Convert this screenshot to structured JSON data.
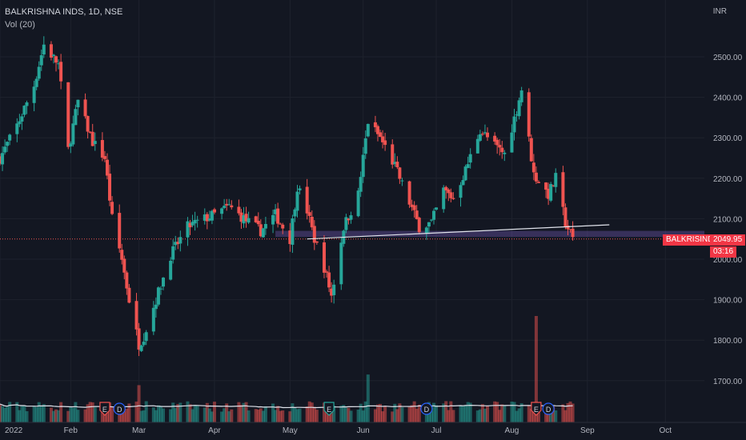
{
  "header": {
    "symbol_line": "BALKRISHNA INDS, 1D, NSE",
    "indicator": "Vol (20)"
  },
  "currency_label": "INR",
  "price_tag": {
    "symbol": "BALKRISIND",
    "price": "2049.95",
    "countdown": "03:16"
  },
  "colors": {
    "background": "#131722",
    "up": "#26a69a",
    "down": "#ef5350",
    "grid": "#1e222d",
    "axis_text": "#b2b5be",
    "support_band": "#7b5fc4",
    "trendline": "#e0e3eb",
    "volume_ma": "#e0e3eb"
  },
  "chart_data": {
    "type": "candlestick",
    "title": "BALKRISHNA INDS, 1D, NSE",
    "y_ticks": [
      1700,
      1800,
      1900,
      2000,
      2100,
      2200,
      2300,
      2400,
      2500
    ],
    "y_ticks_labels": [
      "1700.00",
      "1800.00",
      "1900.00",
      "2000.00",
      "2100.00",
      "2200.00",
      "2300.00",
      "2400.00",
      "2500.00"
    ],
    "ylim": [
      1620,
      2600
    ],
    "x_ticks": [
      {
        "label": "2022",
        "date": "2022-01-03"
      },
      {
        "label": "Feb",
        "date": "2022-02-01"
      },
      {
        "label": "Mar",
        "date": "2022-03-01"
      },
      {
        "label": "Apr",
        "date": "2022-04-01"
      },
      {
        "label": "May",
        "date": "2022-05-02"
      },
      {
        "label": "Jun",
        "date": "2022-06-01"
      },
      {
        "label": "Jul",
        "date": "2022-07-01"
      },
      {
        "label": "Aug",
        "date": "2022-08-01"
      },
      {
        "label": "Sep",
        "date": "2022-09-01"
      },
      {
        "label": "Oct",
        "date": "2022-10-03"
      }
    ],
    "xlim": [
      "2022-01-03",
      "2022-10-19"
    ],
    "series_close": [
      [
        "2022-01-03",
        2250
      ],
      [
        "2022-01-10",
        2330
      ],
      [
        "2022-01-17",
        2430
      ],
      [
        "2022-01-21",
        2530
      ],
      [
        "2022-01-27",
        2480
      ],
      [
        "2022-01-31",
        2270
      ],
      [
        "2022-02-04",
        2390
      ],
      [
        "2022-02-10",
        2290
      ],
      [
        "2022-02-15",
        2250
      ],
      [
        "2022-02-18",
        2100
      ],
      [
        "2022-02-22",
        2000
      ],
      [
        "2022-02-25",
        1900
      ],
      [
        "2022-03-01",
        1790
      ],
      [
        "2022-03-03",
        1810
      ],
      [
        "2022-03-08",
        1900
      ],
      [
        "2022-03-14",
        2010
      ],
      [
        "2022-03-21",
        2080
      ],
      [
        "2022-03-28",
        2100
      ],
      [
        "2022-04-01",
        2110
      ],
      [
        "2022-04-07",
        2130
      ],
      [
        "2022-04-13",
        2100
      ],
      [
        "2022-04-20",
        2070
      ],
      [
        "2022-04-26",
        2110
      ],
      [
        "2022-05-02",
        2050
      ],
      [
        "2022-05-05",
        2180
      ],
      [
        "2022-05-09",
        2120
      ],
      [
        "2022-05-12",
        2050
      ],
      [
        "2022-05-16",
        1980
      ],
      [
        "2022-05-19",
        1910
      ],
      [
        "2022-05-24",
        2080
      ],
      [
        "2022-05-30",
        2160
      ],
      [
        "2022-06-03",
        2340
      ],
      [
        "2022-06-08",
        2300
      ],
      [
        "2022-06-14",
        2230
      ],
      [
        "2022-06-20",
        2140
      ],
      [
        "2022-06-24",
        2080
      ],
      [
        "2022-06-29",
        2090
      ],
      [
        "2022-07-04",
        2170
      ],
      [
        "2022-07-08",
        2150
      ],
      [
        "2022-07-13",
        2220
      ],
      [
        "2022-07-19",
        2320
      ],
      [
        "2022-07-25",
        2280
      ],
      [
        "2022-07-29",
        2260
      ],
      [
        "2022-08-03",
        2370
      ],
      [
        "2022-08-05",
        2420
      ],
      [
        "2022-08-10",
        2210
      ],
      [
        "2022-08-16",
        2160
      ],
      [
        "2022-08-19",
        2200
      ],
      [
        "2022-08-23",
        2090
      ],
      [
        "2022-08-26",
        2049.95
      ]
    ],
    "support_band": [
      2055,
      2070
    ],
    "trendline": [
      [
        "2022-05-09",
        2050
      ],
      [
        "2022-09-10",
        2085
      ]
    ],
    "events": [
      {
        "label": "E",
        "date": "2022-02-15",
        "color": "#ef5350"
      },
      {
        "label": "D",
        "date": "2022-02-21",
        "color": "#2962ff"
      },
      {
        "label": "E",
        "date": "2022-05-18",
        "color": "#26a69a"
      },
      {
        "label": "D",
        "date": "2022-06-27",
        "color": "#2962ff"
      },
      {
        "label": "E",
        "date": "2022-08-11",
        "color": "#ef5350"
      },
      {
        "label": "D",
        "date": "2022-08-16",
        "color": "#2962ff"
      }
    ],
    "volume_spikes": [
      {
        "date": "2022-03-01",
        "relative": 0.35
      },
      {
        "date": "2022-06-03",
        "relative": 0.45
      },
      {
        "date": "2022-08-11",
        "relative": 1.0
      }
    ],
    "grid": true
  }
}
